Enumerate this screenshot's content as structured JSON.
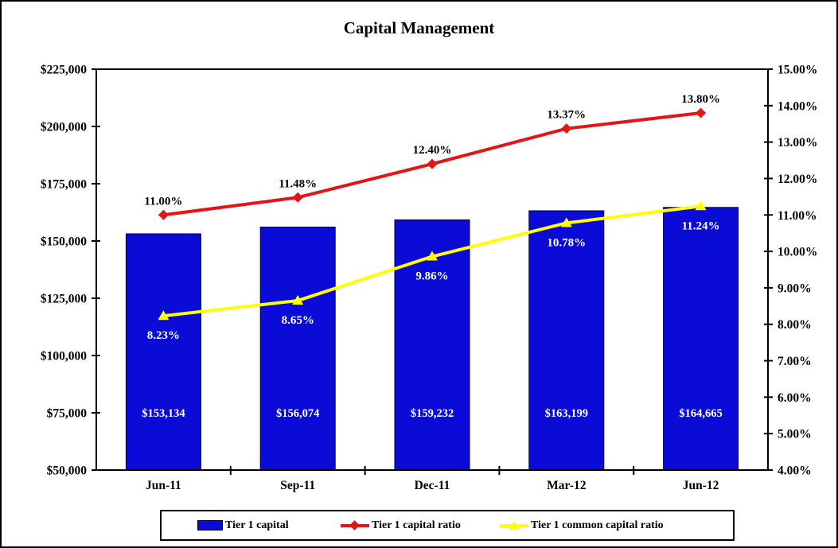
{
  "chart_data": {
    "type": "combo-bar-line",
    "title": "Capital Management",
    "categories": [
      "Jun-11",
      "Sep-11",
      "Dec-11",
      "Mar-12",
      "Jun-12"
    ],
    "series": [
      {
        "name": "Tier 1 capital",
        "type": "bar",
        "axis": "left",
        "color": "#0b0bd8",
        "values": [
          153134,
          156074,
          159232,
          163199,
          164665
        ],
        "labels": [
          "$153,134",
          "$156,074",
          "$159,232",
          "$163,199",
          "$164,665"
        ],
        "label_color": "#ffffff",
        "label_anchor_value": 75000
      },
      {
        "name": "Tier 1 capital ratio",
        "type": "line",
        "axis": "right",
        "marker": "diamond",
        "color": "#e51515",
        "values": [
          11.0,
          11.48,
          12.4,
          13.37,
          13.8
        ],
        "labels": [
          "11.00%",
          "11.48%",
          "12.40%",
          "13.37%",
          "13.80%"
        ],
        "label_color": "#000000",
        "label_position": "above"
      },
      {
        "name": "Tier 1 common capital ratio",
        "type": "line",
        "axis": "right",
        "marker": "triangle",
        "color": "#ffff00",
        "values": [
          8.23,
          8.65,
          9.86,
          10.78,
          11.24
        ],
        "labels": [
          "8.23%",
          "8.65%",
          "9.86%",
          "10.78%",
          "11.24%"
        ],
        "label_color": "#ffffff",
        "label_position": "below"
      }
    ],
    "left_axis": {
      "min": 50000,
      "max": 225000,
      "ticks": [
        225000,
        200000,
        175000,
        150000,
        125000,
        100000,
        75000,
        50000
      ],
      "tick_labels": [
        "$225,000",
        "$200,000",
        "$175,000",
        "$150,000",
        "$125,000",
        "$100,000",
        "$75,000",
        "$50,000"
      ]
    },
    "right_axis": {
      "min": 4,
      "max": 15,
      "ticks": [
        15,
        14,
        13,
        12,
        11,
        10,
        9,
        8,
        7,
        6,
        5,
        4
      ],
      "tick_labels": [
        "15.00%",
        "14.00%",
        "13.00%",
        "12.00%",
        "11.00%",
        "10.00%",
        "9.00%",
        "8.00%",
        "7.00%",
        "6.00%",
        "5.00%",
        "4.00%"
      ]
    },
    "legend_position": "bottom",
    "grid": false
  }
}
